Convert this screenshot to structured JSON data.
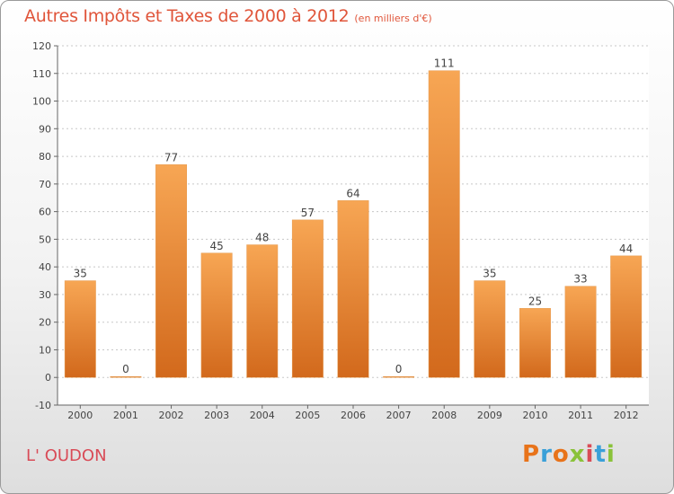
{
  "header": {
    "title": "Autres Impôts et Taxes de 2000 à 2012",
    "subtitle": "(en milliers d'€)"
  },
  "footer": {
    "commune": "L' OUDON",
    "brand": "Proxiti",
    "brand_colors": [
      "#e8731a",
      "#3aa0d8",
      "#e8731a",
      "#8ac23a",
      "#d94b57",
      "#3aa0d8",
      "#8ac23a"
    ]
  },
  "colors": {
    "bar_light": "#f7a654",
    "bar_dark": "#d2691c",
    "grid": "#c8c8c8",
    "title": "#e0553a"
  },
  "chart_data": {
    "type": "bar",
    "title": "Autres Impôts et Taxes de 2000 à 2012",
    "subtitle": "(en milliers d'€)",
    "xlabel": "",
    "ylabel": "",
    "categories": [
      "2000",
      "2001",
      "2002",
      "2003",
      "2004",
      "2005",
      "2006",
      "2007",
      "2008",
      "2009",
      "2010",
      "2011",
      "2012"
    ],
    "values": [
      35,
      0,
      77,
      45,
      48,
      57,
      64,
      0,
      111,
      35,
      25,
      33,
      44
    ],
    "data_labels": [
      "35",
      "0",
      "77",
      "45",
      "48",
      "57",
      "64",
      "0",
      "111",
      "35",
      "25",
      "33",
      "44"
    ],
    "ylim": [
      -10,
      120
    ],
    "yticks": [
      -10,
      0,
      10,
      20,
      30,
      40,
      50,
      60,
      70,
      80,
      90,
      100,
      110,
      120
    ],
    "grid": true,
    "legend": "none"
  }
}
